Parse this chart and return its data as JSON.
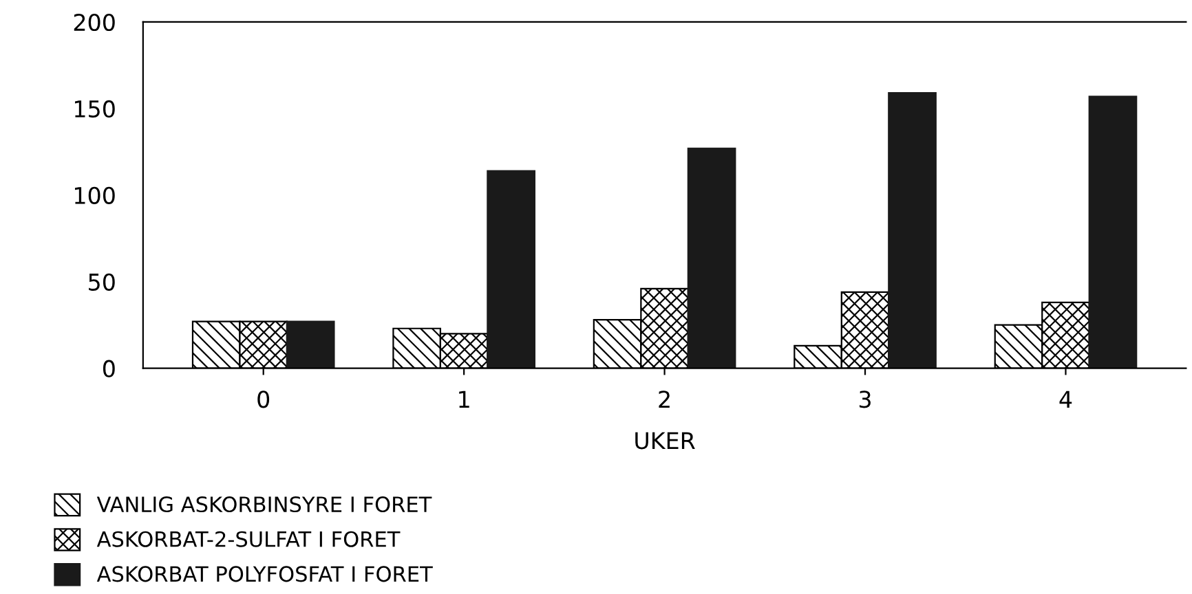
{
  "chart_data": {
    "type": "bar",
    "xlabel": "UKER",
    "categories": [
      "0",
      "1",
      "2",
      "3",
      "4"
    ],
    "series": [
      {
        "name": "VANLIG ASKORBINSYRE I FORET",
        "color": "#000000",
        "values": [
          27,
          23,
          28,
          13,
          25
        ]
      },
      {
        "name": "ASKORBAT-2-SULFAT I FORET",
        "color": "#000000",
        "values": [
          27,
          20,
          46,
          44,
          38
        ]
      },
      {
        "name": "ASKORBAT POLYFOSFAT I FORET",
        "color": "#1a1a1a",
        "values": [
          27,
          114,
          127,
          159,
          157
        ]
      }
    ],
    "ylim": [
      0,
      200
    ],
    "yticks": [
      0,
      50,
      100,
      150,
      200
    ],
    "grid": false,
    "legend": "bottom"
  }
}
